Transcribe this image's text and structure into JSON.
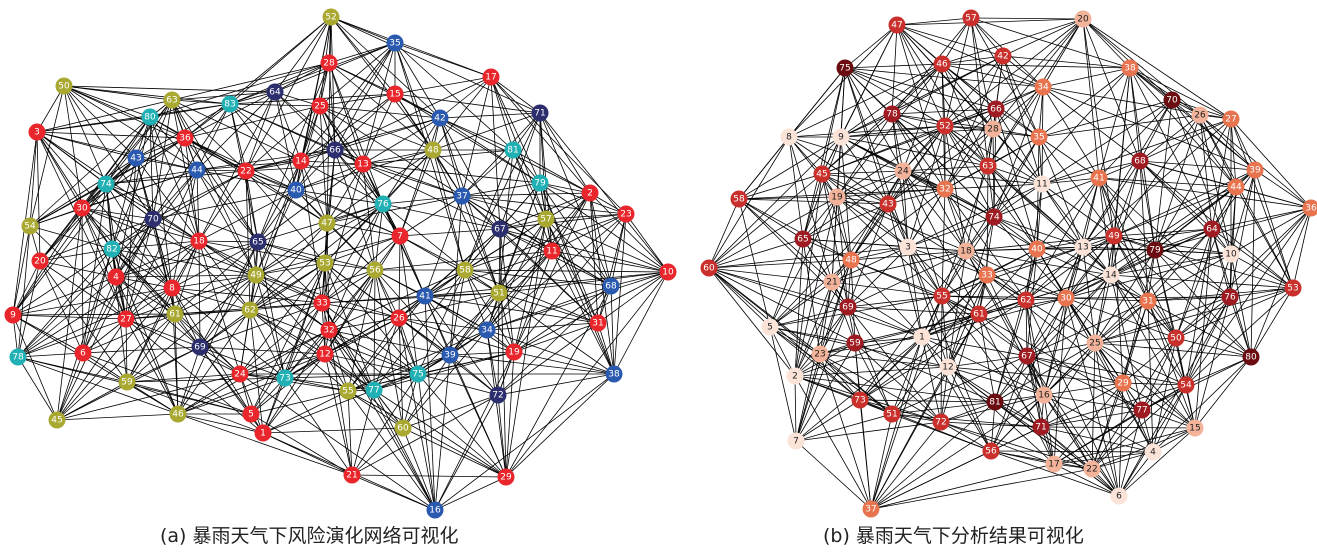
{
  "captions": {
    "a": "(a) 暴雨天气下风险演化网络可视化",
    "b": "(b) 暴雨天气下分析结果可视化"
  },
  "colors": {
    "edge": "#000000",
    "red": "#e8262b",
    "olive": "#a9a932",
    "teal": "#21b1b4",
    "blue": "#2a5ab0",
    "navy": "#2c2e6e",
    "dark": "#6b0d10",
    "deep": "#9e1b21",
    "mid": "#c9302c",
    "salmon": "#e8734f",
    "peach": "#f2b39a",
    "pale": "#fbe3d8"
  },
  "networks": [
    {
      "name": "risk-evolution-network",
      "nodes": [
        {
          "id": "52",
          "c": "olive"
        },
        {
          "id": "35",
          "c": "blue"
        },
        {
          "id": "28",
          "c": "red"
        },
        {
          "id": "17",
          "c": "red"
        },
        {
          "id": "50",
          "c": "olive"
        },
        {
          "id": "63",
          "c": "olive"
        },
        {
          "id": "83",
          "c": "teal"
        },
        {
          "id": "64",
          "c": "navy"
        },
        {
          "id": "25",
          "c": "red"
        },
        {
          "id": "15",
          "c": "red"
        },
        {
          "id": "42",
          "c": "blue"
        },
        {
          "id": "71",
          "c": "navy"
        },
        {
          "id": "80",
          "c": "teal"
        },
        {
          "id": "3",
          "c": "red"
        },
        {
          "id": "36",
          "c": "red"
        },
        {
          "id": "48",
          "c": "olive"
        },
        {
          "id": "81",
          "c": "teal"
        },
        {
          "id": "43",
          "c": "blue"
        },
        {
          "id": "44",
          "c": "blue"
        },
        {
          "id": "22",
          "c": "red"
        },
        {
          "id": "14",
          "c": "red"
        },
        {
          "id": "66",
          "c": "navy"
        },
        {
          "id": "13",
          "c": "red"
        },
        {
          "id": "74",
          "c": "teal"
        },
        {
          "id": "79",
          "c": "teal"
        },
        {
          "id": "2",
          "c": "red"
        },
        {
          "id": "40",
          "c": "blue"
        },
        {
          "id": "76",
          "c": "teal"
        },
        {
          "id": "37",
          "c": "blue"
        },
        {
          "id": "23",
          "c": "red"
        },
        {
          "id": "30",
          "c": "red"
        },
        {
          "id": "70",
          "c": "navy"
        },
        {
          "id": "57",
          "c": "olive"
        },
        {
          "id": "54",
          "c": "olive"
        },
        {
          "id": "47",
          "c": "olive"
        },
        {
          "id": "67",
          "c": "navy"
        },
        {
          "id": "82",
          "c": "teal"
        },
        {
          "id": "18",
          "c": "red"
        },
        {
          "id": "65",
          "c": "navy"
        },
        {
          "id": "7",
          "c": "red"
        },
        {
          "id": "20",
          "c": "red"
        },
        {
          "id": "53",
          "c": "olive"
        },
        {
          "id": "56",
          "c": "olive"
        },
        {
          "id": "11",
          "c": "red"
        },
        {
          "id": "4",
          "c": "red"
        },
        {
          "id": "49",
          "c": "olive"
        },
        {
          "id": "58",
          "c": "olive"
        },
        {
          "id": "10",
          "c": "red"
        },
        {
          "id": "8",
          "c": "red"
        },
        {
          "id": "68",
          "c": "blue"
        },
        {
          "id": "41",
          "c": "blue"
        },
        {
          "id": "51",
          "c": "olive"
        },
        {
          "id": "9",
          "c": "red"
        },
        {
          "id": "33",
          "c": "red"
        },
        {
          "id": "62",
          "c": "olive"
        },
        {
          "id": "61",
          "c": "olive"
        },
        {
          "id": "27",
          "c": "red"
        },
        {
          "id": "26",
          "c": "red"
        },
        {
          "id": "31",
          "c": "red"
        },
        {
          "id": "32",
          "c": "red"
        },
        {
          "id": "34",
          "c": "blue"
        },
        {
          "id": "69",
          "c": "navy"
        },
        {
          "id": "78",
          "c": "teal"
        },
        {
          "id": "6",
          "c": "red"
        },
        {
          "id": "12",
          "c": "red"
        },
        {
          "id": "39",
          "c": "blue"
        },
        {
          "id": "19",
          "c": "red"
        },
        {
          "id": "59",
          "c": "olive"
        },
        {
          "id": "24",
          "c": "red"
        },
        {
          "id": "73",
          "c": "teal"
        },
        {
          "id": "55",
          "c": "olive"
        },
        {
          "id": "77",
          "c": "teal"
        },
        {
          "id": "75",
          "c": "teal"
        },
        {
          "id": "38",
          "c": "blue"
        },
        {
          "id": "72",
          "c": "navy"
        },
        {
          "id": "46",
          "c": "olive"
        },
        {
          "id": "5",
          "c": "red"
        },
        {
          "id": "45",
          "c": "olive"
        },
        {
          "id": "60",
          "c": "olive"
        },
        {
          "id": "1",
          "c": "red"
        },
        {
          "id": "21",
          "c": "red"
        },
        {
          "id": "29",
          "c": "red"
        },
        {
          "id": "16",
          "c": "blue"
        }
      ]
    },
    {
      "name": "analysis-result-network",
      "nodes": [
        {
          "id": "47",
          "c": "mid"
        },
        {
          "id": "57",
          "c": "mid"
        },
        {
          "id": "20",
          "c": "peach"
        },
        {
          "id": "46",
          "c": "mid"
        },
        {
          "id": "42",
          "c": "mid"
        },
        {
          "id": "75",
          "c": "dark"
        },
        {
          "id": "34",
          "c": "salmon"
        },
        {
          "id": "38",
          "c": "salmon"
        },
        {
          "id": "78",
          "c": "deep"
        },
        {
          "id": "52",
          "c": "mid"
        },
        {
          "id": "66",
          "c": "deep"
        },
        {
          "id": "70",
          "c": "dark"
        },
        {
          "id": "26",
          "c": "peach"
        },
        {
          "id": "27",
          "c": "salmon"
        },
        {
          "id": "8",
          "c": "pale"
        },
        {
          "id": "9",
          "c": "pale"
        },
        {
          "id": "28",
          "c": "peach"
        },
        {
          "id": "35",
          "c": "salmon"
        },
        {
          "id": "45",
          "c": "mid"
        },
        {
          "id": "24",
          "c": "peach"
        },
        {
          "id": "63",
          "c": "mid"
        },
        {
          "id": "11",
          "c": "pale"
        },
        {
          "id": "41",
          "c": "salmon"
        },
        {
          "id": "68",
          "c": "deep"
        },
        {
          "id": "32",
          "c": "salmon"
        },
        {
          "id": "58",
          "c": "mid"
        },
        {
          "id": "19",
          "c": "peach"
        },
        {
          "id": "43",
          "c": "mid"
        },
        {
          "id": "44",
          "c": "salmon"
        },
        {
          "id": "39",
          "c": "salmon"
        },
        {
          "id": "36",
          "c": "salmon"
        },
        {
          "id": "74",
          "c": "deep"
        },
        {
          "id": "65",
          "c": "deep"
        },
        {
          "id": "3",
          "c": "pale"
        },
        {
          "id": "18",
          "c": "peach"
        },
        {
          "id": "40",
          "c": "salmon"
        },
        {
          "id": "13",
          "c": "pale"
        },
        {
          "id": "49",
          "c": "mid"
        },
        {
          "id": "64",
          "c": "deep"
        },
        {
          "id": "10",
          "c": "pale"
        },
        {
          "id": "60",
          "c": "mid"
        },
        {
          "id": "48",
          "c": "salmon"
        },
        {
          "id": "79",
          "c": "dark"
        },
        {
          "id": "14",
          "c": "pale"
        },
        {
          "id": "33",
          "c": "salmon"
        },
        {
          "id": "21",
          "c": "peach"
        },
        {
          "id": "53",
          "c": "mid"
        },
        {
          "id": "69",
          "c": "deep"
        },
        {
          "id": "55",
          "c": "mid"
        },
        {
          "id": "62",
          "c": "mid"
        },
        {
          "id": "30",
          "c": "salmon"
        },
        {
          "id": "31",
          "c": "salmon"
        },
        {
          "id": "76",
          "c": "deep"
        },
        {
          "id": "61",
          "c": "mid"
        },
        {
          "id": "5",
          "c": "pale"
        },
        {
          "id": "1",
          "c": "pale"
        },
        {
          "id": "67",
          "c": "deep"
        },
        {
          "id": "25",
          "c": "peach"
        },
        {
          "id": "50",
          "c": "mid"
        },
        {
          "id": "59",
          "c": "deep"
        },
        {
          "id": "23",
          "c": "peach"
        },
        {
          "id": "12",
          "c": "pale"
        },
        {
          "id": "80",
          "c": "dark"
        },
        {
          "id": "2",
          "c": "pale"
        },
        {
          "id": "29",
          "c": "salmon"
        },
        {
          "id": "54",
          "c": "mid"
        },
        {
          "id": "16",
          "c": "peach"
        },
        {
          "id": "73",
          "c": "mid"
        },
        {
          "id": "71",
          "c": "deep"
        },
        {
          "id": "72",
          "c": "mid"
        },
        {
          "id": "77",
          "c": "deep"
        },
        {
          "id": "81",
          "c": "dark"
        },
        {
          "id": "15",
          "c": "peach"
        },
        {
          "id": "7",
          "c": "pale"
        },
        {
          "id": "51",
          "c": "mid"
        },
        {
          "id": "17",
          "c": "peach"
        },
        {
          "id": "22",
          "c": "peach"
        },
        {
          "id": "4",
          "c": "pale"
        },
        {
          "id": "56",
          "c": "mid"
        },
        {
          "id": "6",
          "c": "pale"
        },
        {
          "id": "37",
          "c": "salmon"
        }
      ]
    }
  ]
}
